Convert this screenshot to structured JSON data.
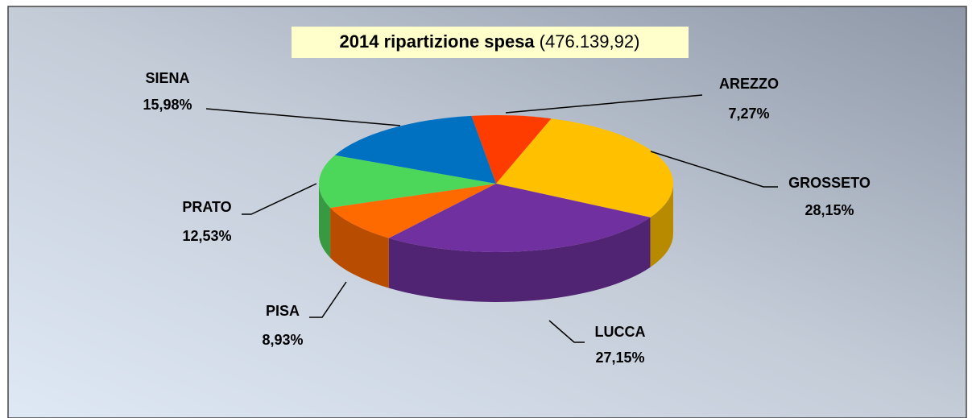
{
  "chart_data": {
    "type": "pie",
    "title": "2014 ripartizione spesa",
    "subtitle": "(476.139,92)",
    "categories": [
      "AREZZO",
      "GROSSETO",
      "LUCCA",
      "PISA",
      "PRATO",
      "SIENA"
    ],
    "values": [
      7.27,
      28.15,
      27.15,
      8.93,
      12.53,
      15.98
    ],
    "value_labels": [
      "7,27%",
      "28,15%",
      "27,15%",
      "8,93%",
      "12,53%",
      "15,98%"
    ],
    "colors": [
      "#ff3c00",
      "#ffc000",
      "#7030a0",
      "#ff6a00",
      "#4cd65a",
      "#0070c0"
    ]
  }
}
